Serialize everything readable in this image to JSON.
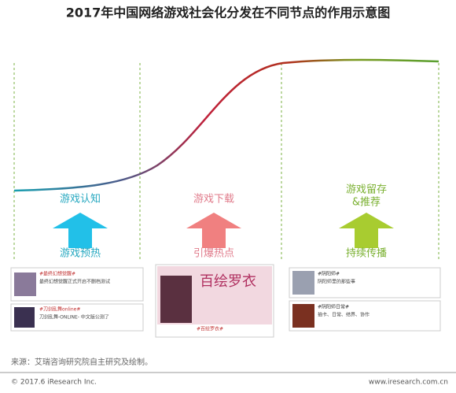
{
  "header": {
    "title": "2017年中国网络游戏社会化分发在不同节点的作用示意图"
  },
  "stages": [
    {
      "top": "游戏认知",
      "bottom": "游戏预热",
      "cards": [
        {
          "tag": "#最终幻想觉醒#",
          "text": "最终幻想觉醒正式开启不删档测试"
        },
        {
          "tag": "#刀剑乱舞online#",
          "text": "刀剑乱舞-ONLINE- 中文版公测了"
        }
      ]
    },
    {
      "top": "游戏下载",
      "bottom": "引爆热点",
      "cards": [
        {
          "tag": "#百绘罗衣#",
          "text": "百绘罗衣"
        }
      ]
    },
    {
      "top": "游戏留存",
      "top2": "&推荐",
      "bottom": "持续传播",
      "cards": [
        {
          "tag": "#阴阳师#",
          "text": "阴阳师里的那些事"
        },
        {
          "tag": "#阴阳师日常#",
          "text": "抽卡、日常、结界、协作"
        }
      ]
    }
  ],
  "footer": {
    "source": "来源：艾瑞咨询研究院自主研究及绘制。",
    "copyright": "© 2017.6 iResearch Inc.",
    "url": "www.iresearch.com.cn"
  }
}
